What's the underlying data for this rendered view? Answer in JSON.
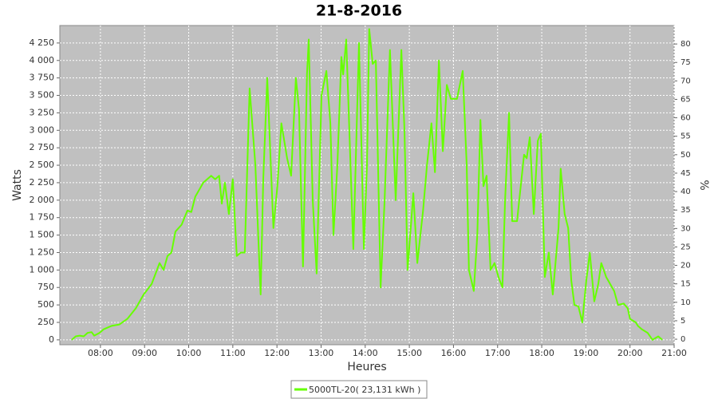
{
  "chart_data": {
    "type": "line",
    "title": "21-8-2016",
    "x_label": "Heures",
    "y_label": "Watts",
    "y2_label": "%",
    "x": [
      7.35,
      7.44,
      7.53,
      7.62,
      7.71,
      7.8,
      7.86,
      7.98,
      8.07,
      8.25,
      8.43,
      8.61,
      8.8,
      8.98,
      9.16,
      9.34,
      9.43,
      9.52,
      9.61,
      9.7,
      9.84,
      9.97,
      10.06,
      10.15,
      10.33,
      10.51,
      10.6,
      10.69,
      10.75,
      10.82,
      10.91,
      11.0,
      11.09,
      11.18,
      11.27,
      11.38,
      11.51,
      11.63,
      11.69,
      11.78,
      11.92,
      12.01,
      12.1,
      12.23,
      12.32,
      12.43,
      12.5,
      12.59,
      12.68,
      12.72,
      12.81,
      12.9,
      13.01,
      13.12,
      13.21,
      13.28,
      13.37,
      13.46,
      13.5,
      13.57,
      13.64,
      13.73,
      13.86,
      13.97,
      14.04,
      14.09,
      14.17,
      14.24,
      14.35,
      14.44,
      14.56,
      14.69,
      14.82,
      14.89,
      14.96,
      15.09,
      15.18,
      15.31,
      15.4,
      15.5,
      15.58,
      15.67,
      15.76,
      15.85,
      15.94,
      16.08,
      16.21,
      16.3,
      16.35,
      16.46,
      16.54,
      16.61,
      16.68,
      16.75,
      16.84,
      16.93,
      17.02,
      17.11,
      17.17,
      17.26,
      17.33,
      17.44,
      17.6,
      17.66,
      17.73,
      17.82,
      17.91,
      17.98,
      18.07,
      18.16,
      18.25,
      18.38,
      18.43,
      18.52,
      18.6,
      18.67,
      18.74,
      18.83,
      18.92,
      19.01,
      19.09,
      19.19,
      19.28,
      19.35,
      19.46,
      19.64,
      19.73,
      19.86,
      19.95,
      20.0,
      20.13,
      20.18,
      20.27,
      20.4,
      20.51,
      20.64,
      20.73
    ],
    "series": [
      {
        "name": "5000TL-20( 23,131 kWh )",
        "color": "#66ff00",
        "values": [
          0,
          50,
          60,
          50,
          100,
          110,
          60,
          100,
          150,
          200,
          220,
          300,
          450,
          650,
          800,
          1100,
          1000,
          1200,
          1250,
          1550,
          1650,
          1850,
          1830,
          2050,
          2250,
          2350,
          2300,
          2350,
          1950,
          2250,
          1800,
          2300,
          1200,
          1250,
          1250,
          3600,
          2500,
          650,
          2300,
          3750,
          1600,
          2200,
          3100,
          2600,
          2350,
          3750,
          3300,
          1050,
          3800,
          4300,
          2000,
          950,
          3500,
          3850,
          3100,
          1500,
          2500,
          4050,
          3800,
          4300,
          3000,
          1300,
          4250,
          1300,
          2500,
          4450,
          3950,
          4000,
          750,
          2000,
          4150,
          2000,
          4150,
          3000,
          1000,
          2100,
          1100,
          1850,
          2500,
          3100,
          2400,
          4000,
          2700,
          3650,
          3450,
          3450,
          3850,
          2500,
          1000,
          700,
          1500,
          3150,
          2200,
          2350,
          1000,
          1100,
          900,
          750,
          2000,
          3250,
          1700,
          1700,
          2650,
          2600,
          2900,
          1800,
          2850,
          2950,
          900,
          1250,
          650,
          1600,
          2450,
          1800,
          1600,
          850,
          500,
          480,
          250,
          850,
          1250,
          550,
          800,
          1100,
          900,
          700,
          500,
          520,
          450,
          300,
          250,
          200,
          150,
          100,
          0,
          50,
          0
        ]
      }
    ],
    "xlim": [
      7.08,
      21.0
    ],
    "xticks": [
      {
        "value": 8,
        "label": "08:00"
      },
      {
        "value": 9,
        "label": "09:00"
      },
      {
        "value": 10,
        "label": "10:00"
      },
      {
        "value": 11,
        "label": "11:00"
      },
      {
        "value": 12,
        "label": "12:00"
      },
      {
        "value": 13,
        "label": "13:00"
      },
      {
        "value": 14,
        "label": "14:00"
      },
      {
        "value": 15,
        "label": "15:00"
      },
      {
        "value": 16,
        "label": "16:00"
      },
      {
        "value": 17,
        "label": "17:00"
      },
      {
        "value": 18,
        "label": "18:00"
      },
      {
        "value": 19,
        "label": "19:00"
      },
      {
        "value": 20,
        "label": "20:00"
      },
      {
        "value": 21,
        "label": "21:00"
      }
    ],
    "ylim": [
      -70,
      4500
    ],
    "yticks": [
      0,
      250,
      500,
      750,
      {
        "value": 1000,
        "label": "1 000"
      },
      {
        "value": 1250,
        "label": "1 250"
      },
      {
        "value": 1500,
        "label": "1 500"
      },
      {
        "value": 1750,
        "label": "1 750"
      },
      {
        "value": 2000,
        "label": "2 000"
      },
      {
        "value": 2250,
        "label": "2 250"
      },
      {
        "value": 2500,
        "label": "2 500"
      },
      {
        "value": 2750,
        "label": "2 750"
      },
      {
        "value": 3000,
        "label": "3 000"
      },
      {
        "value": 3250,
        "label": "3 250"
      },
      {
        "value": 3500,
        "label": "3 500"
      },
      {
        "value": 3750,
        "label": "3 750"
      },
      {
        "value": 4000,
        "label": "4 000"
      },
      {
        "value": 4250,
        "label": "4 250"
      }
    ],
    "y2lim": [
      -1.5,
      85
    ],
    "y2ticks": [
      0,
      5,
      10,
      15,
      20,
      25,
      30,
      35,
      40,
      45,
      50,
      55,
      60,
      65,
      70,
      75,
      80
    ],
    "grid": true,
    "legend": "bottom"
  }
}
